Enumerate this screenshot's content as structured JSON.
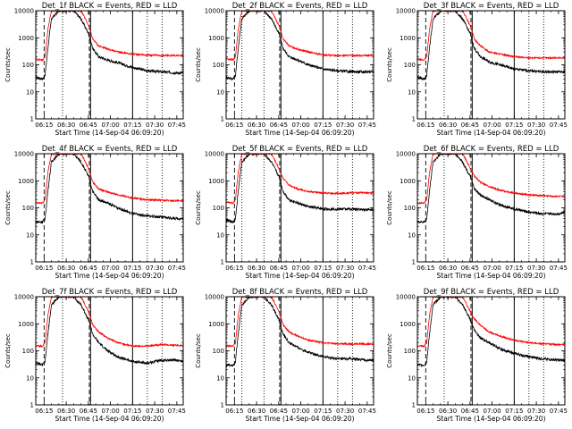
{
  "page": {
    "background": "#ffffff"
  },
  "common": {
    "xlabel": "Start Time (14-Sep-04 06:09:20)",
    "ylabel": "Counts/sec",
    "xticks": [
      "06:15",
      "06:30",
      "06:45",
      "07:00",
      "07:15",
      "07:30",
      "07:45"
    ],
    "yticks": [
      "1",
      "10",
      "100",
      "1000",
      "10000"
    ],
    "ylim": [
      1,
      10000
    ],
    "yscale": "log",
    "xlim_minutes_after_06_09_20": [
      0,
      100
    ],
    "series_colors": {
      "Events": "#000000",
      "LLD": "#ff0000"
    }
  },
  "chart_data": [
    {
      "type": "line",
      "title": "Det_1f BLACK = Events, RED = LLD",
      "vlines": {
        "dashed": [
          "06:15:00",
          "06:45:40"
        ],
        "dotted": [
          "06:27:30",
          "07:25:00",
          "07:35:00"
        ],
        "solid": [
          "06:46:30",
          "07:15:00"
        ]
      },
      "x": [
        "06:09:20",
        "06:14:00",
        "06:15:40",
        "06:17:30",
        "06:20:00",
        "06:25:00",
        "06:30:00",
        "06:35:00",
        "06:40:00",
        "06:45:00",
        "06:48:00",
        "06:52:00",
        "06:58:00",
        "07:05:00",
        "07:15:00",
        "07:25:00",
        "07:35:00",
        "07:45:00",
        "07:49:20"
      ],
      "series": [
        {
          "name": "Events",
          "color": "#000000",
          "values": [
            35,
            30,
            40,
            400,
            5000,
            10000,
            10000,
            10000,
            5000,
            1500,
            400,
            200,
            150,
            120,
            80,
            60,
            55,
            50,
            50
          ]
        },
        {
          "name": "LLD",
          "color": "#ff0000",
          "values": [
            160,
            150,
            200,
            2000,
            10000,
            10000,
            10000,
            10000,
            10000,
            3000,
            900,
            500,
            380,
            300,
            250,
            230,
            220,
            220,
            230
          ]
        }
      ]
    },
    {
      "type": "line",
      "title": "Det_2f BLACK = Events, RED = LLD",
      "vlines": {
        "dashed": [
          "06:15:00",
          "06:45:40"
        ],
        "dotted": [
          "06:20:00",
          "06:35:00",
          "07:25:00",
          "07:35:00"
        ],
        "solid": [
          "06:46:30",
          "07:15:00"
        ]
      },
      "x": [
        "06:09:20",
        "06:14:00",
        "06:15:40",
        "06:17:30",
        "06:20:00",
        "06:25:00",
        "06:30:00",
        "06:35:00",
        "06:40:00",
        "06:45:00",
        "06:48:00",
        "06:52:00",
        "06:58:00",
        "07:05:00",
        "07:15:00",
        "07:25:00",
        "07:35:00",
        "07:45:00",
        "07:49:20"
      ],
      "series": [
        {
          "name": "Events",
          "color": "#000000",
          "values": [
            35,
            30,
            40,
            400,
            5000,
            10000,
            10000,
            10000,
            5000,
            1500,
            400,
            200,
            150,
            100,
            70,
            60,
            55,
            55,
            55
          ]
        },
        {
          "name": "LLD",
          "color": "#ff0000",
          "values": [
            170,
            150,
            200,
            2000,
            10000,
            10000,
            10000,
            10000,
            10000,
            3000,
            900,
            500,
            380,
            300,
            230,
            220,
            220,
            220,
            230
          ]
        }
      ]
    },
    {
      "type": "line",
      "title": "Det_3f BLACK = Events, RED = LLD",
      "vlines": {
        "dashed": [
          "06:15:00",
          "06:45:40"
        ],
        "dotted": [
          "06:27:30",
          "07:25:00",
          "07:35:00"
        ],
        "solid": [
          "06:46:30",
          "07:15:00"
        ]
      },
      "x": [
        "06:09:20",
        "06:14:00",
        "06:15:40",
        "06:17:30",
        "06:20:00",
        "06:25:00",
        "06:30:00",
        "06:35:00",
        "06:40:00",
        "06:45:00",
        "06:48:00",
        "06:52:00",
        "06:58:00",
        "07:05:00",
        "07:15:00",
        "07:25:00",
        "07:35:00",
        "07:45:00",
        "07:49:20"
      ],
      "series": [
        {
          "name": "Events",
          "color": "#000000",
          "values": [
            35,
            30,
            40,
            400,
            5000,
            10000,
            10000,
            10000,
            5000,
            1500,
            400,
            200,
            130,
            100,
            70,
            60,
            55,
            55,
            55
          ]
        },
        {
          "name": "LLD",
          "color": "#ff0000",
          "values": [
            160,
            150,
            200,
            2000,
            10000,
            10000,
            10000,
            10000,
            10000,
            3000,
            900,
            500,
            300,
            250,
            200,
            180,
            180,
            180,
            180
          ]
        }
      ]
    },
    {
      "type": "line",
      "title": "Det_4f BLACK = Events, RED = LLD",
      "vlines": {
        "dashed": [
          "06:15:00",
          "06:45:40"
        ],
        "dotted": [
          "06:27:30",
          "07:25:00",
          "07:35:00"
        ],
        "solid": [
          "06:46:30",
          "07:15:00"
        ]
      },
      "x": [
        "06:09:20",
        "06:14:00",
        "06:15:40",
        "06:17:30",
        "06:20:00",
        "06:25:00",
        "06:30:00",
        "06:35:00",
        "06:40:00",
        "06:45:00",
        "06:48:00",
        "06:52:00",
        "06:58:00",
        "07:05:00",
        "07:15:00",
        "07:25:00",
        "07:35:00",
        "07:45:00",
        "07:49:20"
      ],
      "series": [
        {
          "name": "Events",
          "color": "#000000",
          "values": [
            30,
            30,
            40,
            400,
            5000,
            10000,
            10000,
            10000,
            5000,
            1500,
            400,
            200,
            150,
            100,
            60,
            50,
            45,
            40,
            40
          ]
        },
        {
          "name": "LLD",
          "color": "#ff0000",
          "values": [
            150,
            150,
            200,
            2000,
            10000,
            10000,
            10000,
            10000,
            10000,
            3000,
            900,
            500,
            380,
            300,
            230,
            200,
            190,
            180,
            180
          ]
        }
      ]
    },
    {
      "type": "line",
      "title": "Det_5f BLACK = Events, RED = LLD",
      "vlines": {
        "dashed": [
          "06:15:00",
          "06:45:40"
        ],
        "dotted": [
          "06:20:00",
          "06:35:00",
          "07:25:00",
          "07:35:00"
        ],
        "solid": [
          "06:46:30",
          "07:15:00"
        ]
      },
      "x": [
        "06:09:20",
        "06:14:00",
        "06:15:40",
        "06:17:30",
        "06:20:00",
        "06:25:00",
        "06:30:00",
        "06:35:00",
        "06:40:00",
        "06:45:00",
        "06:48:00",
        "06:52:00",
        "06:58:00",
        "07:05:00",
        "07:15:00",
        "07:25:00",
        "07:35:00",
        "07:45:00",
        "07:49:20"
      ],
      "series": [
        {
          "name": "Events",
          "color": "#000000",
          "values": [
            35,
            30,
            40,
            400,
            5000,
            10000,
            10000,
            10000,
            5000,
            1500,
            400,
            200,
            150,
            110,
            90,
            90,
            90,
            85,
            85
          ]
        },
        {
          "name": "LLD",
          "color": "#ff0000",
          "values": [
            160,
            150,
            200,
            2000,
            10000,
            10000,
            10000,
            10000,
            10000,
            3000,
            1200,
            700,
            500,
            400,
            350,
            340,
            360,
            360,
            350
          ]
        }
      ]
    },
    {
      "type": "line",
      "title": "Det_6f BLACK = Events, RED = LLD",
      "vlines": {
        "dashed": [
          "06:15:00",
          "06:45:40"
        ],
        "dotted": [
          "06:27:30",
          "07:25:00",
          "07:35:00"
        ],
        "solid": [
          "06:46:30",
          "07:15:00"
        ]
      },
      "x": [
        "06:09:20",
        "06:14:00",
        "06:15:40",
        "06:17:30",
        "06:20:00",
        "06:25:00",
        "06:30:00",
        "06:35:00",
        "06:40:00",
        "06:45:00",
        "06:48:00",
        "06:52:00",
        "06:58:00",
        "07:05:00",
        "07:15:00",
        "07:25:00",
        "07:35:00",
        "07:45:00",
        "07:49:20"
      ],
      "series": [
        {
          "name": "Events",
          "color": "#000000",
          "values": [
            30,
            30,
            40,
            400,
            5000,
            10000,
            10000,
            10000,
            5000,
            1500,
            500,
            300,
            200,
            130,
            90,
            70,
            60,
            60,
            70
          ]
        },
        {
          "name": "LLD",
          "color": "#ff0000",
          "values": [
            150,
            150,
            200,
            2000,
            10000,
            10000,
            10000,
            10000,
            10000,
            3000,
            1500,
            900,
            600,
            450,
            350,
            300,
            280,
            260,
            260
          ]
        }
      ]
    },
    {
      "type": "line",
      "title": "Det_7f BLACK = Events, RED = LLD",
      "vlines": {
        "dashed": [
          "06:15:00",
          "06:45:40"
        ],
        "dotted": [
          "06:27:30",
          "07:25:00",
          "07:35:00"
        ],
        "solid": [
          "06:46:30",
          "07:15:00"
        ]
      },
      "x": [
        "06:09:20",
        "06:14:00",
        "06:15:40",
        "06:17:30",
        "06:20:00",
        "06:25:00",
        "06:30:00",
        "06:35:00",
        "06:40:00",
        "06:45:00",
        "06:48:00",
        "06:52:00",
        "06:58:00",
        "07:05:00",
        "07:15:00",
        "07:25:00",
        "07:35:00",
        "07:45:00",
        "07:49:20"
      ],
      "series": [
        {
          "name": "Events",
          "color": "#000000",
          "values": [
            35,
            30,
            40,
            400,
            5000,
            10000,
            10000,
            10000,
            5000,
            1500,
            400,
            200,
            100,
            60,
            40,
            35,
            45,
            45,
            40
          ]
        },
        {
          "name": "LLD",
          "color": "#ff0000",
          "values": [
            150,
            150,
            200,
            2000,
            10000,
            10000,
            10000,
            10000,
            10000,
            3000,
            900,
            500,
            300,
            200,
            150,
            150,
            170,
            160,
            150
          ]
        }
      ]
    },
    {
      "type": "line",
      "title": "Det_8f BLACK = Events, RED = LLD",
      "vlines": {
        "dashed": [
          "06:15:00",
          "06:45:40"
        ],
        "dotted": [
          "06:20:00",
          "06:35:00",
          "07:25:00",
          "07:35:00"
        ],
        "solid": [
          "06:46:30",
          "07:15:00"
        ]
      },
      "x": [
        "06:09:20",
        "06:14:00",
        "06:15:40",
        "06:17:30",
        "06:20:00",
        "06:25:00",
        "06:30:00",
        "06:35:00",
        "06:40:00",
        "06:45:00",
        "06:48:00",
        "06:52:00",
        "06:58:00",
        "07:05:00",
        "07:15:00",
        "07:25:00",
        "07:35:00",
        "07:45:00",
        "07:49:20"
      ],
      "series": [
        {
          "name": "Events",
          "color": "#000000",
          "values": [
            30,
            30,
            40,
            400,
            5000,
            10000,
            10000,
            10000,
            5000,
            1500,
            400,
            200,
            130,
            90,
            60,
            50,
            50,
            45,
            45
          ]
        },
        {
          "name": "LLD",
          "color": "#ff0000",
          "values": [
            150,
            150,
            200,
            2000,
            10000,
            10000,
            10000,
            10000,
            10000,
            3000,
            900,
            500,
            350,
            250,
            200,
            180,
            180,
            180,
            170
          ]
        }
      ]
    },
    {
      "type": "line",
      "title": "Det_9f BLACK = Events, RED = LLD",
      "vlines": {
        "dashed": [
          "06:15:00",
          "06:45:40"
        ],
        "dotted": [
          "06:27:30",
          "07:25:00",
          "07:35:00"
        ],
        "solid": [
          "06:46:30",
          "07:15:00"
        ]
      },
      "x": [
        "06:09:20",
        "06:14:00",
        "06:15:40",
        "06:17:30",
        "06:20:00",
        "06:25:00",
        "06:30:00",
        "06:35:00",
        "06:40:00",
        "06:45:00",
        "06:48:00",
        "06:52:00",
        "06:58:00",
        "07:05:00",
        "07:15:00",
        "07:25:00",
        "07:35:00",
        "07:45:00",
        "07:49:20"
      ],
      "series": [
        {
          "name": "Events",
          "color": "#000000",
          "values": [
            30,
            30,
            40,
            400,
            5000,
            10000,
            10000,
            10000,
            5000,
            1500,
            600,
            300,
            200,
            120,
            80,
            60,
            50,
            45,
            45
          ]
        },
        {
          "name": "LLD",
          "color": "#ff0000",
          "values": [
            150,
            150,
            200,
            2000,
            10000,
            10000,
            10000,
            10000,
            10000,
            3000,
            1500,
            900,
            500,
            350,
            250,
            200,
            180,
            170,
            170
          ]
        }
      ]
    }
  ]
}
